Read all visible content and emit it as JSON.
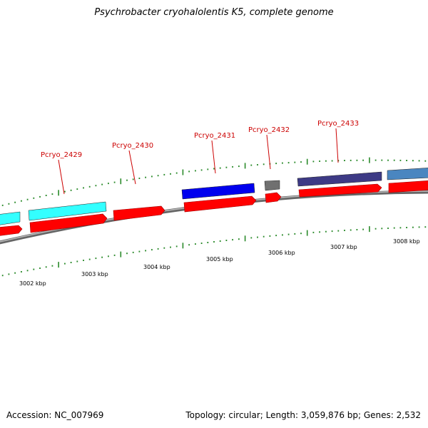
{
  "title": "Psychrobacter cryohalolentis K5, complete genome",
  "footer": {
    "accession": "Accession: NC_007969",
    "stats": "Topology: circular; Length: 3,059,876 bp; Genes: 2,532"
  },
  "colors": {
    "forward_strand": "#ff0000",
    "backbone": "#8a8a8a",
    "tick": "#2a8a2a",
    "label": "#cc0000"
  },
  "genes": [
    {
      "locus": "",
      "color": "#33ffff"
    },
    {
      "locus": "Pcryo_2429",
      "color": "#33ffff"
    },
    {
      "locus": "Pcryo_2430",
      "color": ""
    },
    {
      "locus": "Pcryo_2431",
      "color": "#0000ee"
    },
    {
      "locus": "Pcryo_2432",
      "color": "#707070"
    },
    {
      "locus": "Pcryo_2433",
      "color": "#3d3a85"
    },
    {
      "locus": "",
      "color": "#4a86c0"
    }
  ],
  "kbp_labels": [
    "3002 kbp",
    "3003 kbp",
    "3004 kbp",
    "3005 kbp",
    "3006 kbp",
    "3007 kbp",
    "3008 kbp"
  ]
}
